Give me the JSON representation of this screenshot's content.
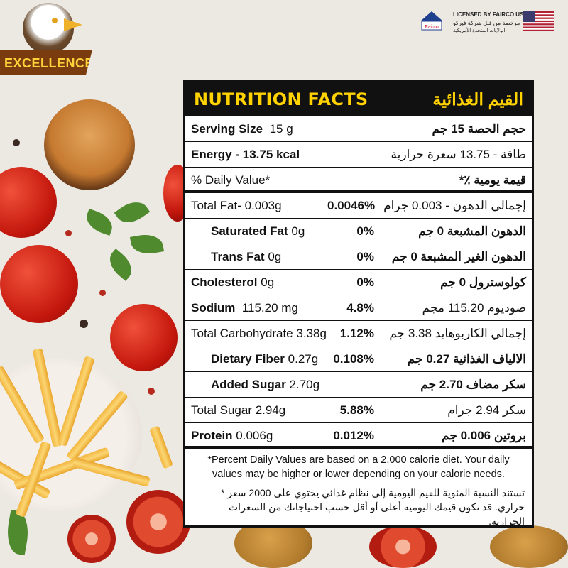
{
  "brand": {
    "logo_text": "EXCELLENCE",
    "license_en": "LICENSED BY FAIRCO USA",
    "license_ar_line1": "مرخصة من قبل شركة فيركو",
    "license_ar_line2": "الولايات المتحدة الأمريكية",
    "license_logo_text": "Fairco"
  },
  "panel": {
    "title_en": "NUTRITION FACTS",
    "title_ar": "القيم الغذائية",
    "rows": [
      {
        "left_label": "Serving Size",
        "left_value": "15 g",
        "pct": "",
        "right": "حجم الحصة 15 جم"
      },
      {
        "left_label": "Energy - 13.75 kcal",
        "left_value": "",
        "pct": "",
        "right": "طاقة - 13.75 سعرة حرارية"
      },
      {
        "left_label": "% Daily Value*",
        "left_value": "",
        "pct": "",
        "right": "قيمة يومية ٪*"
      },
      {
        "left_label": "Total Fat- 0.003g",
        "left_value": "",
        "pct": "0.0046%",
        "right": "إجمالي الدهون - 0.003 جرام"
      },
      {
        "left_label": "Saturated Fat",
        "left_value": "0g",
        "pct": "0%",
        "right": "الدهون المشبعة 0 جم"
      },
      {
        "left_label": "Trans Fat",
        "left_value": "0g",
        "pct": "0%",
        "right": "الدهون الغير المشبعة 0 جم"
      },
      {
        "left_label": "Cholesterol",
        "left_value": "0g",
        "pct": "0%",
        "right": "كولوسترول 0 جم"
      },
      {
        "left_label": "Sodium",
        "left_value": "115.20 mg",
        "pct": "4.8%",
        "right": "صوديوم 115.20 مجم"
      },
      {
        "left_label": "Total Carbohydrate 3.38g",
        "left_value": "",
        "pct": "1.12%",
        "right": "إجمالي  الكاربوهايد 3.38 جم"
      },
      {
        "left_label": "Dietary Fiber",
        "left_value": "0.27g",
        "pct": "0.108%",
        "right": "الالياف الغذائية 0.27 جم"
      },
      {
        "left_label": "Added Sugar",
        "left_value": "2.70g",
        "pct": "",
        "right": "سكر مضاف 2.70 جم"
      },
      {
        "left_label": "Total Sugar 2.94g",
        "left_value": "",
        "pct": "5.88%",
        "right": "سكر 2.94 جرام"
      },
      {
        "left_label": "Protein",
        "left_value": "0.006g",
        "pct": "0.012%",
        "right": "بروتين 0.006 جم"
      }
    ],
    "footnote_en": "*Percent Daily Values are based on a 2,000 calorie diet. Your daily values may be higher or lower depending on your calorie needs.",
    "footnote_ar": "تستند النسبة المئوية للقيم اليومية إلى نظام غذائي يحتوي على 2000 سعر * حراري. قد تكون قيمك اليومية أعلى أو أقل حسب احتياجاتك من السعرات الحرارية."
  }
}
